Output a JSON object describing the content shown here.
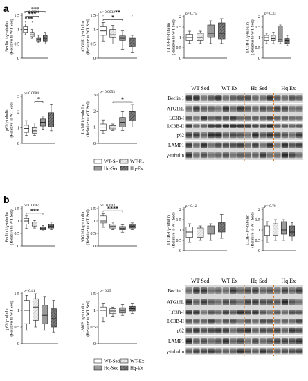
{
  "figure": {
    "panels": [
      {
        "label": "a",
        "blot_headers": [
          "WT Sed",
          "WT Ex",
          "Hq Sed",
          "Hq Ex"
        ],
        "blot_rows": [
          "Beclin 1",
          "ATG16L",
          "LC3B-I",
          "LC3B-II",
          "p62",
          "LAMP1",
          "γ-tubulin"
        ],
        "legend": [
          "WT-Sed",
          "WT-Ex",
          "Hq-Sed",
          "Hq-Ex"
        ]
      },
      {
        "label": "b",
        "blot_headers": [
          "WT Sed",
          "WT Ex",
          "Hq Sed",
          "Hq Ex"
        ],
        "blot_rows": [
          "Beclin 1",
          "ATG16L",
          "LC3B-I",
          "LC3B-II",
          "p62",
          "LAMP1",
          "γ-tubulin"
        ],
        "legend": [
          "WT-Sed",
          "WT-Ex",
          "Hq-Sed",
          "Hq-Ex"
        ]
      }
    ],
    "group_colors": {
      "WT-Sed": "#ffffff",
      "WT-Ex": "#e6e6e6",
      "Hq-Sed": "#9a9a9a",
      "Hq-Ex": "#5a5a5a"
    }
  },
  "chart_data": [
    {
      "type": "box",
      "panel": "a",
      "ylabel": "Beclin 1/γ-tubulin (Relative to WT Sed)",
      "pvalue": "p= 0.0004",
      "ylim": [
        0,
        1.5
      ],
      "yticks": [
        "0",
        "0.5",
        "1",
        "1.5"
      ],
      "groups": [
        "WT-Sed",
        "WT-Ex",
        "Hq-Sed",
        "Hq-Ex"
      ],
      "boxes": [
        {
          "min": 0.82,
          "q1": 0.9,
          "median": 1.0,
          "q3": 1.1,
          "max": 1.2
        },
        {
          "min": 0.7,
          "q1": 0.75,
          "median": 0.82,
          "q3": 0.9,
          "max": 1.0
        },
        {
          "min": 0.55,
          "q1": 0.6,
          "median": 0.65,
          "q3": 0.7,
          "max": 0.8
        },
        {
          "min": 0.5,
          "q1": 0.6,
          "median": 0.68,
          "q3": 0.8,
          "max": 0.9
        }
      ],
      "significance": [
        {
          "from": 0,
          "to": 1,
          "label": "***"
        },
        {
          "from": 0,
          "to": 2,
          "label": "***"
        },
        {
          "from": 0,
          "to": 3,
          "label": "***"
        }
      ]
    },
    {
      "type": "box",
      "panel": "a",
      "ylabel": "ATG16L/γ-tubulin (Relative to WT Sed)",
      "pvalue": "p= 0.0032",
      "ylim": [
        0,
        1.5
      ],
      "yticks": [
        "0",
        "0.5",
        "1",
        "1.5"
      ],
      "groups": [
        "WT-Sed",
        "WT-Ex",
        "Hq-Sed",
        "Hq-Ex"
      ],
      "boxes": [
        {
          "min": 0.6,
          "q1": 0.8,
          "median": 0.95,
          "q3": 1.1,
          "max": 1.25
        },
        {
          "min": 0.5,
          "q1": 0.72,
          "median": 0.82,
          "q3": 1.0,
          "max": 1.15
        },
        {
          "min": 0.3,
          "q1": 0.62,
          "median": 0.7,
          "q3": 0.78,
          "max": 0.95
        },
        {
          "min": 0.2,
          "q1": 0.4,
          "median": 0.5,
          "q3": 0.7,
          "max": 0.8
        }
      ],
      "significance": [
        {
          "from": 0,
          "to": 2,
          "label": "*"
        },
        {
          "from": 0,
          "to": 3,
          "label": "**"
        }
      ]
    },
    {
      "type": "box",
      "panel": "a",
      "ylabel": "LC3B-I/γ-tubulin (Relative to WT Sed)",
      "pvalue": "p= 0.75",
      "ylim": [
        0,
        2
      ],
      "yticks": [
        "0",
        "0.5",
        "1",
        "1.5",
        "2"
      ],
      "groups": [
        "WT-Sed",
        "WT-Ex",
        "Hq-Sed",
        "Hq-Ex"
      ],
      "boxes": [
        {
          "min": 0.7,
          "q1": 0.85,
          "median": 1.0,
          "q3": 1.15,
          "max": 1.3
        },
        {
          "min": 0.7,
          "q1": 0.85,
          "median": 1.0,
          "q3": 1.2,
          "max": 1.3
        },
        {
          "min": 0.7,
          "q1": 1.0,
          "median": 1.2,
          "q3": 1.6,
          "max": 1.8
        },
        {
          "min": 0.7,
          "q1": 0.9,
          "median": 1.2,
          "q3": 1.7,
          "max": 1.9
        }
      ],
      "significance": []
    },
    {
      "type": "box",
      "panel": "a",
      "ylabel": "LC3B-II/γ-tubulin (Relative to WT Sed)",
      "pvalue": "p= 0.33",
      "ylim": [
        0,
        2
      ],
      "yticks": [
        "0",
        "0.5",
        "1",
        "1.5",
        "2"
      ],
      "groups": [
        "WT-Sed",
        "WT-Ex",
        "Hq-Sed",
        "Hq-Ex"
      ],
      "boxes": [
        {
          "min": 0.7,
          "q1": 0.85,
          "median": 1.0,
          "q3": 1.1,
          "max": 1.2
        },
        {
          "min": 0.7,
          "q1": 0.85,
          "median": 0.95,
          "q3": 1.1,
          "max": 1.25
        },
        {
          "min": 0.7,
          "q1": 0.8,
          "median": 0.9,
          "q3": 1.55,
          "max": 1.6
        },
        {
          "min": 0.6,
          "q1": 0.7,
          "median": 0.85,
          "q3": 0.95,
          "max": 1.1
        }
      ],
      "significance": []
    },
    {
      "type": "box",
      "panel": "a",
      "ylabel": "p62/γ-tubulin (Relative to WT Sed)",
      "pvalue": "p= 0.0084",
      "ylim": [
        0,
        3
      ],
      "yticks": [
        "0",
        "1",
        "2",
        "3"
      ],
      "groups": [
        "WT-Sed",
        "WT-Ex",
        "Hq-Sed",
        "Hq-Ex"
      ],
      "boxes": [
        {
          "min": 0.5,
          "q1": 0.7,
          "median": 0.95,
          "q3": 1.15,
          "max": 1.45
        },
        {
          "min": 0.5,
          "q1": 0.65,
          "median": 0.8,
          "q3": 1.0,
          "max": 1.3
        },
        {
          "min": 0.9,
          "q1": 1.1,
          "median": 1.35,
          "q3": 1.55,
          "max": 1.75
        },
        {
          "min": 0.8,
          "q1": 1.05,
          "median": 1.3,
          "q3": 1.95,
          "max": 2.5
        }
      ],
      "significance": [
        {
          "from": 1,
          "to": 2,
          "label": "*"
        }
      ]
    },
    {
      "type": "box",
      "panel": "a",
      "ylabel": "LAMP1/γ-tubulin (Relative to WT Sed)",
      "pvalue": "p= 0.0053",
      "ylim": [
        0,
        3
      ],
      "yticks": [
        "0",
        "1",
        "2",
        "3"
      ],
      "groups": [
        "WT-Sed",
        "WT-Ex",
        "Hq-Sed",
        "Hq-Ex"
      ],
      "boxes": [
        {
          "min": 0.6,
          "q1": 0.8,
          "median": 1.0,
          "q3": 1.2,
          "max": 1.45
        },
        {
          "min": 0.8,
          "q1": 0.9,
          "median": 1.0,
          "q3": 1.1,
          "max": 1.2
        },
        {
          "min": 0.8,
          "q1": 1.0,
          "median": 1.3,
          "q3": 1.6,
          "max": 2.0
        },
        {
          "min": 1.0,
          "q1": 1.4,
          "median": 1.7,
          "q3": 2.0,
          "max": 2.4
        }
      ],
      "significance": [
        {
          "from": 1,
          "to": 3,
          "label": "*"
        }
      ]
    },
    {
      "type": "box",
      "panel": "b",
      "ylabel": "Beclin 1/γ-tubulin (Relative to WT Sed)",
      "pvalue": "p= 0.0007",
      "ylim": [
        0,
        1.5
      ],
      "yticks": [
        "0",
        "0.5",
        "1",
        "1.5"
      ],
      "groups": [
        "WT-Sed",
        "WT-Ex",
        "Hq-Sed",
        "Hq-Ex"
      ],
      "boxes": [
        {
          "min": 0.7,
          "q1": 0.88,
          "median": 1.0,
          "q3": 1.1,
          "max": 1.2
        },
        {
          "min": 0.72,
          "q1": 0.8,
          "median": 0.88,
          "q3": 0.95,
          "max": 1.02
        },
        {
          "min": 0.6,
          "q1": 0.65,
          "median": 0.7,
          "q3": 0.75,
          "max": 0.82
        },
        {
          "min": 0.65,
          "q1": 0.72,
          "median": 0.8,
          "q3": 0.88,
          "max": 0.95
        }
      ],
      "significance": [
        {
          "from": 0,
          "to": 2,
          "label": "***"
        }
      ]
    },
    {
      "type": "box",
      "panel": "b",
      "ylabel": "ATG16L/γ-tubulin (Relative to WT Sed)",
      "pvalue": "p= 0.0003",
      "ylim": [
        0,
        1.5
      ],
      "yticks": [
        "0",
        "0.5",
        "1",
        "1.5"
      ],
      "groups": [
        "WT-Sed",
        "WT-Ex",
        "Hq-Sed",
        "Hq-Ex"
      ],
      "boxes": [
        {
          "min": 0.75,
          "q1": 0.92,
          "median": 1.0,
          "q3": 1.2,
          "max": 1.3
        },
        {
          "min": 0.65,
          "q1": 0.72,
          "median": 0.8,
          "q3": 0.88,
          "max": 0.95
        },
        {
          "min": 0.55,
          "q1": 0.65,
          "median": 0.7,
          "q3": 0.78,
          "max": 0.85
        },
        {
          "min": 0.65,
          "q1": 0.72,
          "median": 0.8,
          "q3": 0.88,
          "max": 0.92
        }
      ],
      "significance": [
        {
          "from": 0,
          "to": 2,
          "label": "****"
        }
      ]
    },
    {
      "type": "box",
      "panel": "b",
      "ylabel": "LC3B-I/γ-tubulin (Relative to WT Sed)",
      "pvalue": "p= 0.12",
      "ylim": [
        0,
        2
      ],
      "yticks": [
        "0",
        "0.5",
        "1",
        "1.5",
        "2"
      ],
      "groups": [
        "WT-Sed",
        "WT-Ex",
        "Hq-Sed",
        "Hq-Ex"
      ],
      "boxes": [
        {
          "min": 0.4,
          "q1": 0.65,
          "median": 0.9,
          "q3": 1.15,
          "max": 1.3
        },
        {
          "min": 0.5,
          "q1": 0.65,
          "median": 0.85,
          "q3": 1.1,
          "max": 1.2
        },
        {
          "min": 0.5,
          "q1": 0.8,
          "median": 0.95,
          "q3": 1.2,
          "max": 1.3
        },
        {
          "min": 0.6,
          "q1": 0.9,
          "median": 1.05,
          "q3": 1.35,
          "max": 1.75
        }
      ],
      "significance": []
    },
    {
      "type": "box",
      "panel": "b",
      "ylabel": "LC3B-II/γ-tubulin (Relative to WT Sed)",
      "pvalue": "p= 0.70",
      "ylim": [
        0,
        2
      ],
      "yticks": [
        "0",
        "0.5",
        "1",
        "1.5",
        "2"
      ],
      "groups": [
        "WT-Sed",
        "WT-Ex",
        "Hq-Sed",
        "Hq-Ex"
      ],
      "boxes": [
        {
          "min": 0.4,
          "q1": 0.75,
          "median": 0.95,
          "q3": 1.2,
          "max": 1.4
        },
        {
          "min": 0.5,
          "q1": 0.75,
          "median": 0.95,
          "q3": 1.3,
          "max": 1.5
        },
        {
          "min": 0.5,
          "q1": 0.8,
          "median": 1.0,
          "q3": 1.4,
          "max": 1.5
        },
        {
          "min": 0.5,
          "q1": 0.7,
          "median": 0.9,
          "q3": 1.2,
          "max": 1.35
        }
      ],
      "significance": []
    },
    {
      "type": "box",
      "panel": "b",
      "ylabel": "p62/γ-tubulin (Relative to WT Sed)",
      "pvalue": "p= 0.41",
      "ylim": [
        0,
        1.5
      ],
      "yticks": [
        "0",
        "0.5",
        "1",
        "1.5"
      ],
      "groups": [
        "WT-Sed",
        "WT-Ex",
        "Hq-Sed",
        "Hq-Ex"
      ],
      "boxes": [
        {
          "min": 0.4,
          "q1": 0.6,
          "median": 1.0,
          "q3": 1.3,
          "max": 1.45
        },
        {
          "min": 0.5,
          "q1": 0.7,
          "median": 1.1,
          "q3": 1.35,
          "max": 1.5
        },
        {
          "min": 0.4,
          "q1": 0.6,
          "median": 0.85,
          "q3": 1.15,
          "max": 1.4
        },
        {
          "min": 0.35,
          "q1": 0.5,
          "median": 0.75,
          "q3": 1.05,
          "max": 1.3
        }
      ],
      "significance": []
    },
    {
      "type": "box",
      "panel": "b",
      "ylabel": "LAMP1/γ-tubulin (Relative to WT Sed)",
      "pvalue": "p= 0.25",
      "ylim": [
        0,
        1.5
      ],
      "yticks": [
        "0",
        "0.5",
        "1",
        "1.5"
      ],
      "groups": [
        "WT-Sed",
        "WT-Ex",
        "Hq-Sed",
        "Hq-Ex"
      ],
      "boxes": [
        {
          "min": 0.65,
          "q1": 0.8,
          "median": 1.0,
          "q3": 1.1,
          "max": 1.2
        },
        {
          "min": 0.82,
          "q1": 0.9,
          "median": 0.98,
          "q3": 1.05,
          "max": 1.1
        },
        {
          "min": 0.85,
          "q1": 0.92,
          "median": 1.0,
          "q3": 1.08,
          "max": 1.18
        },
        {
          "min": 0.9,
          "q1": 0.98,
          "median": 1.05,
          "q3": 1.12,
          "max": 1.2
        }
      ],
      "significance": []
    }
  ]
}
